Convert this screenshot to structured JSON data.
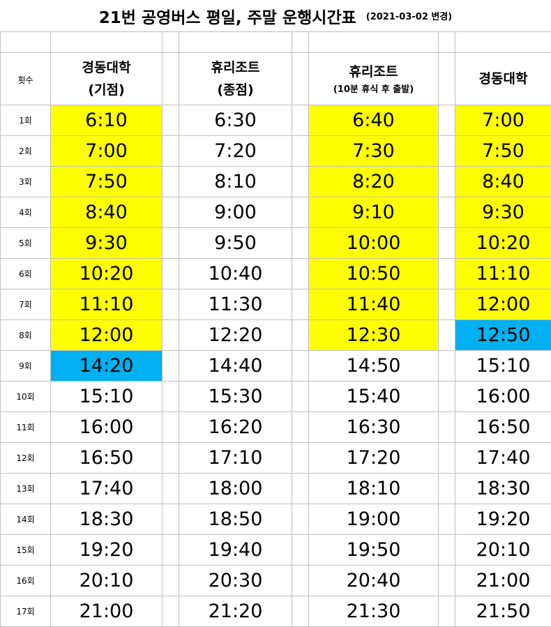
{
  "title": {
    "main": "21번 공영버스 평일, 주말 운행시간표",
    "changed": "(2021-03-02 변경)"
  },
  "header": {
    "index_label": "횟수",
    "columns": [
      {
        "line1": "경동대학",
        "line2": "(기점)"
      },
      {
        "line1": "휴리조트",
        "line2": "(종점)"
      },
      {
        "line1": "휴리조트",
        "line2": "(10분 휴식 후 출발)"
      },
      {
        "line1": "경동대학",
        "line2": ""
      }
    ]
  },
  "colors": {
    "yellow": "#ffff00",
    "blue": "#00b0f0"
  },
  "rows": [
    {
      "n": "1회",
      "t": [
        "6:10",
        "6:30",
        "6:40",
        "7:00"
      ],
      "hl": [
        "y",
        "",
        "y",
        "y"
      ]
    },
    {
      "n": "2회",
      "t": [
        "7:00",
        "7:20",
        "7:30",
        "7:50"
      ],
      "hl": [
        "y",
        "",
        "y",
        "y"
      ]
    },
    {
      "n": "3회",
      "t": [
        "7:50",
        "8:10",
        "8:20",
        "8:40"
      ],
      "hl": [
        "y",
        "",
        "y",
        "y"
      ]
    },
    {
      "n": "4회",
      "t": [
        "8:40",
        "9:00",
        "9:10",
        "9:30"
      ],
      "hl": [
        "y",
        "",
        "y",
        "y"
      ]
    },
    {
      "n": "5회",
      "t": [
        "9:30",
        "9:50",
        "10:00",
        "10:20"
      ],
      "hl": [
        "y",
        "",
        "y",
        "y"
      ]
    },
    {
      "n": "6회",
      "t": [
        "10:20",
        "10:40",
        "10:50",
        "11:10"
      ],
      "hl": [
        "y",
        "",
        "y",
        "y"
      ]
    },
    {
      "n": "7회",
      "t": [
        "11:10",
        "11:30",
        "11:40",
        "12:00"
      ],
      "hl": [
        "y",
        "",
        "y",
        "y"
      ]
    },
    {
      "n": "8회",
      "t": [
        "12:00",
        "12:20",
        "12:30",
        "12:50"
      ],
      "hl": [
        "y",
        "",
        "y",
        "b"
      ]
    },
    {
      "n": "9회",
      "t": [
        "14:20",
        "14:40",
        "14:50",
        "15:10"
      ],
      "hl": [
        "b",
        "",
        "",
        ""
      ]
    },
    {
      "n": "10회",
      "t": [
        "15:10",
        "15:30",
        "15:40",
        "16:00"
      ],
      "hl": [
        "",
        "",
        "",
        ""
      ]
    },
    {
      "n": "11회",
      "t": [
        "16:00",
        "16:20",
        "16:30",
        "16:50"
      ],
      "hl": [
        "",
        "",
        "",
        ""
      ]
    },
    {
      "n": "12회",
      "t": [
        "16:50",
        "17:10",
        "17:20",
        "17:40"
      ],
      "hl": [
        "",
        "",
        "",
        ""
      ]
    },
    {
      "n": "13회",
      "t": [
        "17:40",
        "18:00",
        "18:10",
        "18:30"
      ],
      "hl": [
        "",
        "",
        "",
        ""
      ]
    },
    {
      "n": "14회",
      "t": [
        "18:30",
        "18:50",
        "19:00",
        "19:20"
      ],
      "hl": [
        "",
        "",
        "",
        ""
      ]
    },
    {
      "n": "15회",
      "t": [
        "19:20",
        "19:40",
        "19:50",
        "20:10"
      ],
      "hl": [
        "",
        "",
        "",
        ""
      ]
    },
    {
      "n": "16회",
      "t": [
        "20:10",
        "20:30",
        "20:40",
        "21:00"
      ],
      "hl": [
        "",
        "",
        "",
        ""
      ]
    },
    {
      "n": "17회",
      "t": [
        "21:00",
        "21:20",
        "21:30",
        "21:50"
      ],
      "hl": [
        "",
        "",
        "",
        ""
      ]
    }
  ]
}
